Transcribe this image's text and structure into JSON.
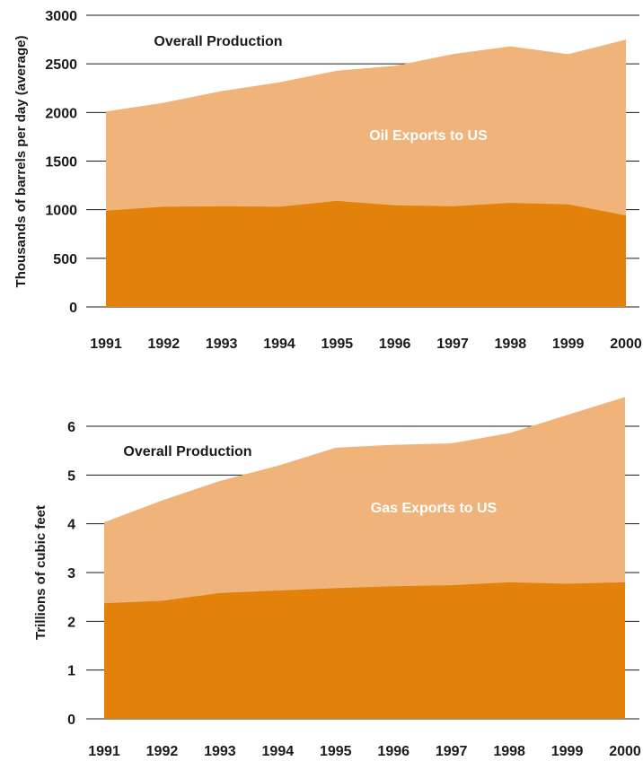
{
  "colors": {
    "total_area": "#f0b47a",
    "exports_area": "#e2820b",
    "gridline": "#1a1a1a",
    "overall_label": "#1a1a1a",
    "exports_label": "#ffffff"
  },
  "chart_data": [
    {
      "type": "area",
      "title": "",
      "xlabel": "",
      "ylabel": "Thousands of barrels per day (average)",
      "categories": [
        "1991",
        "1992",
        "1993",
        "1994",
        "1995",
        "1996",
        "1997",
        "1998",
        "1999",
        "2000"
      ],
      "ylim": [
        0,
        3000
      ],
      "yticks": [
        0,
        500,
        1000,
        1500,
        2000,
        2500,
        3000
      ],
      "grid": true,
      "series": [
        {
          "name": "Overall Production",
          "values": [
            2010,
            2100,
            2220,
            2310,
            2430,
            2480,
            2600,
            2680,
            2600,
            2750
          ]
        },
        {
          "name": "Oil Exports to US",
          "values": [
            990,
            1030,
            1035,
            1030,
            1090,
            1045,
            1035,
            1070,
            1055,
            940
          ]
        }
      ]
    },
    {
      "type": "area",
      "title": "",
      "xlabel": "",
      "ylabel": "Trillions of cubic feet",
      "categories": [
        "1991",
        "1992",
        "1993",
        "1994",
        "1995",
        "1996",
        "1997",
        "1998",
        "1999",
        "2000"
      ],
      "ylim": [
        0,
        6
      ],
      "yticks": [
        0,
        1,
        2,
        3,
        4,
        5,
        6
      ],
      "grid": true,
      "series": [
        {
          "name": "Overall Production",
          "values": [
            4.03,
            4.48,
            4.88,
            5.19,
            5.56,
            5.62,
            5.65,
            5.86,
            6.23,
            6.6
          ]
        },
        {
          "name": "Gas Exports to US",
          "values": [
            2.37,
            2.42,
            2.58,
            2.63,
            2.68,
            2.72,
            2.74,
            2.8,
            2.77,
            2.8
          ]
        }
      ]
    }
  ]
}
